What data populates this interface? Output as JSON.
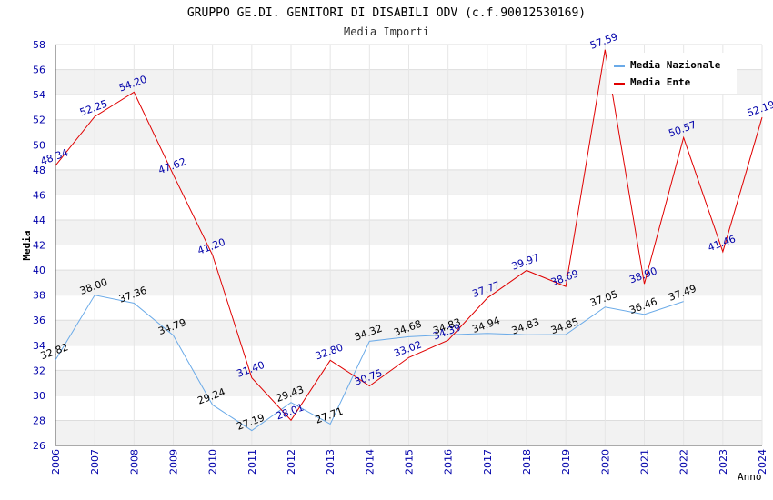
{
  "chart_data": {
    "type": "line",
    "title": "GRUPPO GE.DI. GENITORI DI DISABILI ODV (c.f.90012530169)",
    "subtitle": "Media Importi",
    "xlabel": "Anno",
    "ylabel": "Media",
    "ylim": [
      26,
      58
    ],
    "y_ticks": [
      "26",
      "28",
      "30",
      "32",
      "34",
      "36",
      "38",
      "40",
      "42",
      "44",
      "46",
      "48",
      "50",
      "52",
      "54",
      "56",
      "58"
    ],
    "x": [
      "2006",
      "2007",
      "2008",
      "2009",
      "2010",
      "2011",
      "2012",
      "2013",
      "2014",
      "2015",
      "2016",
      "2017",
      "2018",
      "2019",
      "2020",
      "2021",
      "2022",
      "2023",
      "2024"
    ],
    "grid": true,
    "legend_position": "top-right",
    "series": [
      {
        "name": "Media Nazionale",
        "color": "#6aaae8",
        "values": [
          32.82,
          38.0,
          37.36,
          34.79,
          29.24,
          27.19,
          29.43,
          27.71,
          34.32,
          34.68,
          34.83,
          34.94,
          34.83,
          34.85,
          37.05,
          36.46,
          37.49,
          null,
          null
        ],
        "labels": [
          "32.82",
          "38.00",
          "37.36",
          "34.79",
          "29.24",
          "27.19",
          "29.43",
          "27.71",
          "34.32",
          "34.68",
          "34.83",
          "34.94",
          "34.83",
          "34.85",
          "37.05",
          "36.46",
          "37.49",
          null,
          null
        ]
      },
      {
        "name": "Media Ente",
        "color": "#e00000",
        "values": [
          48.34,
          52.25,
          54.2,
          47.62,
          41.2,
          31.4,
          28.01,
          32.8,
          30.75,
          33.02,
          34.39,
          37.77,
          39.97,
          38.69,
          57.59,
          38.9,
          50.57,
          41.46,
          52.19
        ],
        "labels": [
          "48.34",
          "52.25",
          "54.20",
          "47.62",
          "41.20",
          "31.40",
          "28.01",
          "32.80",
          "30.75",
          "33.02",
          "34.39",
          "37.77",
          "39.97",
          "38.69",
          "57.59",
          "38.90",
          "50.57",
          "41.46",
          "52.19"
        ]
      }
    ]
  }
}
